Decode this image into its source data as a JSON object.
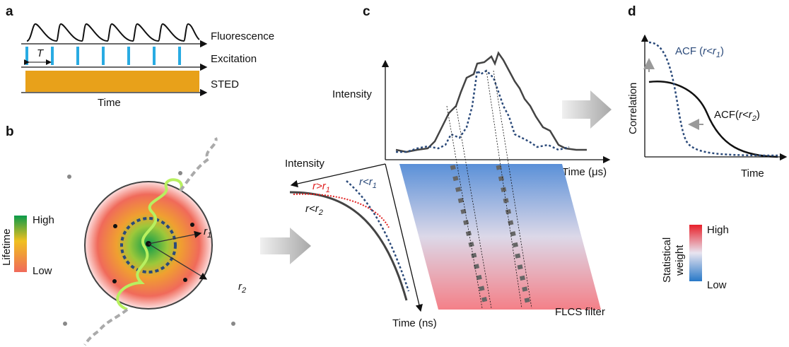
{
  "panel_a": {
    "label": "a",
    "fluorescence": "Fluorescence",
    "excitation": "Excitation",
    "sted": "STED",
    "time": "Time",
    "period": "T"
  },
  "panel_b": {
    "label": "b",
    "legend": {
      "title": "Lifetime",
      "high": "High",
      "low": "Low"
    },
    "r1": {
      "main": "r",
      "sub": "1"
    },
    "r2": {
      "main": "r",
      "sub": "2"
    }
  },
  "panel_c": {
    "label": "c",
    "intensity_top": "Intensity",
    "time_us": "Time (μs)",
    "intensity_decay": "Intensity",
    "time_ns": "Time (ns)",
    "filter": "FLCS filter",
    "curves": [
      {
        "main": "r>r",
        "sub": "1"
      },
      {
        "main": "r<r",
        "sub": "1"
      },
      {
        "main": "r<r",
        "sub": "2"
      }
    ]
  },
  "panel_d": {
    "label": "d",
    "acf_r1": {
      "prefix": "ACF (",
      "main": "r<r",
      "sub": "1",
      "suffix": ")"
    },
    "acf_r2": {
      "prefix": "ACF(",
      "main": "r<r",
      "sub": "2",
      "suffix": ")"
    },
    "y_axis": "Correlation",
    "x_axis": "Time",
    "legend": {
      "title_lines": [
        "Statistical",
        "weight"
      ],
      "high": "High",
      "low": "Low"
    }
  }
}
